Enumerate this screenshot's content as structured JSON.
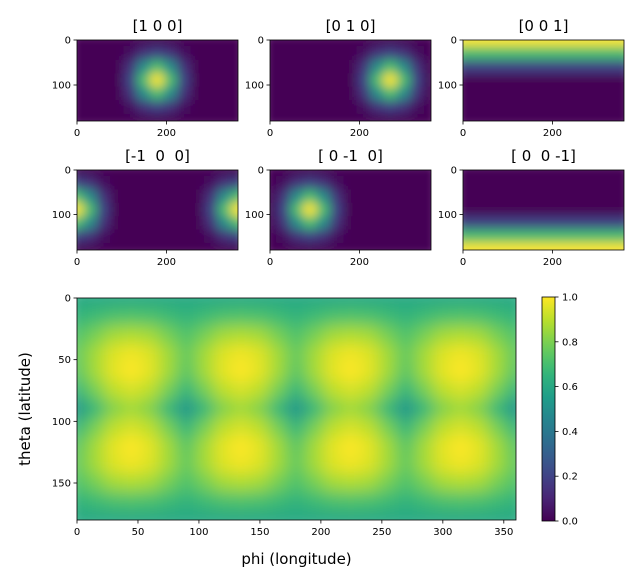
{
  "chart_data": [
    {
      "type": "heatmap",
      "title": "[1 0 0]",
      "colormap": "viridis",
      "x": [
        0,
        30,
        60,
        90,
        120,
        150,
        180,
        210,
        240,
        270,
        300,
        330,
        360
      ],
      "y": [
        0,
        30,
        60,
        90,
        120,
        150,
        180
      ],
      "values": [
        [
          0,
          0,
          0,
          0,
          0,
          0,
          0,
          0,
          0,
          0,
          0,
          0,
          0
        ],
        [
          0,
          0,
          0,
          0,
          0.04,
          0.14,
          0.2,
          0.14,
          0.04,
          0,
          0,
          0,
          0
        ],
        [
          0,
          0,
          0,
          0,
          0.14,
          0.49,
          0.7,
          0.49,
          0.14,
          0,
          0,
          0,
          0
        ],
        [
          0,
          0,
          0,
          0,
          0.2,
          0.7,
          1,
          0.7,
          0.2,
          0,
          0,
          0,
          0
        ],
        [
          0,
          0,
          0,
          0,
          0.14,
          0.49,
          0.7,
          0.49,
          0.14,
          0,
          0,
          0,
          0
        ],
        [
          0,
          0,
          0,
          0,
          0.04,
          0.14,
          0.2,
          0.14,
          0.04,
          0,
          0,
          0,
          0
        ],
        [
          0,
          0,
          0,
          0,
          0,
          0,
          0,
          0,
          0,
          0,
          0,
          0,
          0
        ]
      ],
      "xlim": [
        0,
        360
      ],
      "ylim": [
        180,
        0
      ],
      "xticks": [
        0,
        200
      ],
      "yticks": [
        0,
        100
      ]
    },
    {
      "type": "heatmap",
      "title": "[0 1 0]",
      "colormap": "viridis",
      "x": [
        0,
        30,
        60,
        90,
        120,
        150,
        180,
        210,
        240,
        270,
        300,
        330,
        360
      ],
      "y": [
        0,
        30,
        60,
        90,
        120,
        150,
        180
      ],
      "values": [
        [
          0,
          0,
          0,
          0,
          0,
          0,
          0,
          0,
          0,
          0,
          0,
          0,
          0
        ],
        [
          0,
          0,
          0,
          0,
          0,
          0,
          0,
          0.04,
          0.14,
          0.2,
          0.14,
          0.04,
          0
        ],
        [
          0,
          0,
          0,
          0,
          0,
          0,
          0,
          0.14,
          0.49,
          0.7,
          0.49,
          0.14,
          0
        ],
        [
          0,
          0,
          0,
          0,
          0,
          0,
          0,
          0.2,
          0.7,
          1,
          0.7,
          0.2,
          0
        ],
        [
          0,
          0,
          0,
          0,
          0,
          0,
          0,
          0.14,
          0.49,
          0.7,
          0.49,
          0.14,
          0
        ],
        [
          0,
          0,
          0,
          0,
          0,
          0,
          0,
          0.04,
          0.14,
          0.2,
          0.14,
          0.04,
          0
        ],
        [
          0,
          0,
          0,
          0,
          0,
          0,
          0,
          0,
          0,
          0,
          0,
          0,
          0
        ]
      ],
      "xlim": [
        0,
        360
      ],
      "ylim": [
        180,
        0
      ],
      "xticks": [
        0,
        200
      ],
      "yticks": [
        0,
        100
      ]
    },
    {
      "type": "heatmap",
      "title": "[0 0 1]",
      "colormap": "viridis",
      "x": [
        0,
        30,
        60,
        90,
        120,
        150,
        180,
        210,
        240,
        270,
        300,
        330,
        360
      ],
      "y": [
        0,
        30,
        60,
        90,
        120,
        150,
        180
      ],
      "values": [
        [
          1,
          1,
          1,
          1,
          1,
          1,
          1,
          1,
          1,
          1,
          1,
          1,
          1
        ],
        [
          0.7,
          0.7,
          0.7,
          0.7,
          0.7,
          0.7,
          0.7,
          0.7,
          0.7,
          0.7,
          0.7,
          0.7,
          0.7
        ],
        [
          0.2,
          0.2,
          0.2,
          0.2,
          0.2,
          0.2,
          0.2,
          0.2,
          0.2,
          0.2,
          0.2,
          0.2,
          0.2
        ],
        [
          0,
          0,
          0,
          0,
          0,
          0,
          0,
          0,
          0,
          0,
          0,
          0,
          0
        ],
        [
          0,
          0,
          0,
          0,
          0,
          0,
          0,
          0,
          0,
          0,
          0,
          0,
          0
        ],
        [
          0,
          0,
          0,
          0,
          0,
          0,
          0,
          0,
          0,
          0,
          0,
          0,
          0
        ],
        [
          0,
          0,
          0,
          0,
          0,
          0,
          0,
          0,
          0,
          0,
          0,
          0,
          0
        ]
      ],
      "xlim": [
        0,
        360
      ],
      "ylim": [
        180,
        0
      ],
      "xticks": [
        0,
        200
      ],
      "yticks": [
        0,
        100
      ]
    },
    {
      "type": "heatmap",
      "title": "[-1  0  0]",
      "colormap": "viridis",
      "x": [
        0,
        30,
        60,
        90,
        120,
        150,
        180,
        210,
        240,
        270,
        300,
        330,
        360
      ],
      "y": [
        0,
        30,
        60,
        90,
        120,
        150,
        180
      ],
      "values": [
        [
          0,
          0,
          0,
          0,
          0,
          0,
          0,
          0,
          0,
          0,
          0,
          0,
          0
        ],
        [
          0.2,
          0.14,
          0.04,
          0,
          0,
          0,
          0,
          0,
          0,
          0,
          0.04,
          0.14,
          0.2
        ],
        [
          0.7,
          0.49,
          0.14,
          0,
          0,
          0,
          0,
          0,
          0,
          0,
          0.14,
          0.49,
          0.7
        ],
        [
          1,
          0.7,
          0.2,
          0,
          0,
          0,
          0,
          0,
          0,
          0,
          0.2,
          0.7,
          1
        ],
        [
          0.7,
          0.49,
          0.14,
          0,
          0,
          0,
          0,
          0,
          0,
          0,
          0.14,
          0.49,
          0.7
        ],
        [
          0.2,
          0.14,
          0.04,
          0,
          0,
          0,
          0,
          0,
          0,
          0,
          0.04,
          0.14,
          0.2
        ],
        [
          0,
          0,
          0,
          0,
          0,
          0,
          0,
          0,
          0,
          0,
          0,
          0,
          0
        ]
      ],
      "xlim": [
        0,
        360
      ],
      "ylim": [
        180,
        0
      ],
      "xticks": [
        0,
        200
      ],
      "yticks": [
        0,
        100
      ]
    },
    {
      "type": "heatmap",
      "title": "[ 0 -1  0]",
      "colormap": "viridis",
      "x": [
        0,
        30,
        60,
        90,
        120,
        150,
        180,
        210,
        240,
        270,
        300,
        330,
        360
      ],
      "y": [
        0,
        30,
        60,
        90,
        120,
        150,
        180
      ],
      "values": [
        [
          0,
          0,
          0,
          0,
          0,
          0,
          0,
          0,
          0,
          0,
          0,
          0,
          0
        ],
        [
          0,
          0.04,
          0.14,
          0.2,
          0.14,
          0.04,
          0,
          0,
          0,
          0,
          0,
          0,
          0
        ],
        [
          0,
          0.14,
          0.49,
          0.7,
          0.49,
          0.14,
          0,
          0,
          0,
          0,
          0,
          0,
          0
        ],
        [
          0,
          0.2,
          0.7,
          1,
          0.7,
          0.2,
          0,
          0,
          0,
          0,
          0,
          0,
          0
        ],
        [
          0,
          0.14,
          0.49,
          0.7,
          0.49,
          0.14,
          0,
          0,
          0,
          0,
          0,
          0,
          0
        ],
        [
          0,
          0.04,
          0.14,
          0.2,
          0.14,
          0.04,
          0,
          0,
          0,
          0,
          0,
          0,
          0
        ],
        [
          0,
          0,
          0,
          0,
          0,
          0,
          0,
          0,
          0,
          0,
          0,
          0,
          0
        ]
      ],
      "xlim": [
        0,
        360
      ],
      "ylim": [
        180,
        0
      ],
      "xticks": [
        0,
        200
      ],
      "yticks": [
        0,
        100
      ]
    },
    {
      "type": "heatmap",
      "title": "[ 0  0 -1]",
      "colormap": "viridis",
      "x": [
        0,
        30,
        60,
        90,
        120,
        150,
        180,
        210,
        240,
        270,
        300,
        330,
        360
      ],
      "y": [
        0,
        30,
        60,
        90,
        120,
        150,
        180
      ],
      "values": [
        [
          0,
          0,
          0,
          0,
          0,
          0,
          0,
          0,
          0,
          0,
          0,
          0,
          0
        ],
        [
          0,
          0,
          0,
          0,
          0,
          0,
          0,
          0,
          0,
          0,
          0,
          0,
          0
        ],
        [
          0,
          0,
          0,
          0,
          0,
          0,
          0,
          0,
          0,
          0,
          0,
          0,
          0
        ],
        [
          0,
          0,
          0,
          0,
          0,
          0,
          0,
          0,
          0,
          0,
          0,
          0,
          0
        ],
        [
          0.2,
          0.2,
          0.2,
          0.2,
          0.2,
          0.2,
          0.2,
          0.2,
          0.2,
          0.2,
          0.2,
          0.2,
          0.2
        ],
        [
          0.7,
          0.7,
          0.7,
          0.7,
          0.7,
          0.7,
          0.7,
          0.7,
          0.7,
          0.7,
          0.7,
          0.7,
          0.7
        ],
        [
          1,
          1,
          1,
          1,
          1,
          1,
          1,
          1,
          1,
          1,
          1,
          1,
          1
        ]
      ],
      "xlim": [
        0,
        360
      ],
      "ylim": [
        180,
        0
      ],
      "xticks": [
        0,
        200
      ],
      "yticks": [
        0,
        100
      ]
    },
    {
      "type": "heatmap",
      "colormap": "viridis",
      "x_label": "phi (longitude)",
      "y_label": "theta (latitude)",
      "x": [
        0,
        15,
        30,
        45,
        60,
        75,
        90,
        105,
        120,
        135,
        150,
        165,
        180,
        195,
        210,
        225,
        240,
        255,
        270,
        285,
        300,
        315,
        330,
        345,
        360
      ],
      "y": [
        0,
        15,
        30,
        45,
        60,
        75,
        90,
        105,
        120,
        135,
        150,
        165,
        180
      ],
      "values": [
        [
          0.6,
          0.6,
          0.6,
          0.6,
          0.6,
          0.6,
          0.6,
          0.6,
          0.6,
          0.6,
          0.6,
          0.6,
          0.6,
          0.6,
          0.6,
          0.6,
          0.6,
          0.6,
          0.6,
          0.6,
          0.6,
          0.6,
          0.6,
          0.6,
          0.6
        ],
        [
          0.65,
          0.68,
          0.71,
          0.72,
          0.71,
          0.68,
          0.65,
          0.68,
          0.71,
          0.72,
          0.71,
          0.68,
          0.65,
          0.68,
          0.71,
          0.72,
          0.71,
          0.68,
          0.65,
          0.68,
          0.71,
          0.72,
          0.71,
          0.68,
          0.65
        ],
        [
          0.72,
          0.79,
          0.86,
          0.88,
          0.86,
          0.79,
          0.72,
          0.79,
          0.86,
          0.88,
          0.86,
          0.79,
          0.72,
          0.79,
          0.86,
          0.88,
          0.86,
          0.79,
          0.72,
          0.79,
          0.86,
          0.88,
          0.86,
          0.79,
          0.72
        ],
        [
          0.76,
          0.86,
          0.95,
          0.98,
          0.95,
          0.86,
          0.76,
          0.86,
          0.95,
          0.98,
          0.95,
          0.86,
          0.76,
          0.86,
          0.95,
          0.98,
          0.95,
          0.86,
          0.76,
          0.86,
          0.95,
          0.98,
          0.95,
          0.86,
          0.76
        ],
        [
          0.74,
          0.86,
          0.96,
          1.0,
          0.96,
          0.86,
          0.74,
          0.86,
          0.96,
          1.0,
          0.96,
          0.86,
          0.74,
          0.86,
          0.96,
          1.0,
          0.96,
          0.86,
          0.74,
          0.86,
          0.96,
          1.0,
          0.96,
          0.86,
          0.74
        ],
        [
          0.66,
          0.79,
          0.9,
          0.94,
          0.9,
          0.79,
          0.66,
          0.79,
          0.9,
          0.94,
          0.9,
          0.79,
          0.66,
          0.79,
          0.9,
          0.94,
          0.9,
          0.79,
          0.66,
          0.79,
          0.9,
          0.94,
          0.9,
          0.79,
          0.66
        ],
        [
          0.52,
          0.67,
          0.81,
          0.86,
          0.81,
          0.67,
          0.52,
          0.67,
          0.81,
          0.86,
          0.81,
          0.67,
          0.52,
          0.67,
          0.81,
          0.86,
          0.81,
          0.67,
          0.52,
          0.67,
          0.81,
          0.86,
          0.81,
          0.67,
          0.52
        ],
        [
          0.66,
          0.79,
          0.9,
          0.94,
          0.9,
          0.79,
          0.66,
          0.79,
          0.9,
          0.94,
          0.9,
          0.79,
          0.66,
          0.79,
          0.9,
          0.94,
          0.9,
          0.79,
          0.66,
          0.79,
          0.9,
          0.94,
          0.9,
          0.79,
          0.66
        ],
        [
          0.74,
          0.86,
          0.96,
          1.0,
          0.96,
          0.86,
          0.74,
          0.86,
          0.96,
          1.0,
          0.96,
          0.86,
          0.74,
          0.86,
          0.96,
          1.0,
          0.96,
          0.86,
          0.74,
          0.86,
          0.96,
          1.0,
          0.96,
          0.86,
          0.74
        ],
        [
          0.76,
          0.86,
          0.95,
          0.98,
          0.95,
          0.86,
          0.76,
          0.86,
          0.95,
          0.98,
          0.95,
          0.86,
          0.76,
          0.86,
          0.95,
          0.98,
          0.95,
          0.86,
          0.76,
          0.86,
          0.95,
          0.98,
          0.95,
          0.86,
          0.76
        ],
        [
          0.72,
          0.79,
          0.86,
          0.88,
          0.86,
          0.79,
          0.72,
          0.79,
          0.86,
          0.88,
          0.86,
          0.79,
          0.72,
          0.79,
          0.86,
          0.88,
          0.86,
          0.79,
          0.72,
          0.79,
          0.86,
          0.88,
          0.86,
          0.79,
          0.72
        ],
        [
          0.65,
          0.68,
          0.71,
          0.72,
          0.71,
          0.68,
          0.65,
          0.68,
          0.71,
          0.72,
          0.71,
          0.68,
          0.65,
          0.68,
          0.71,
          0.72,
          0.71,
          0.68,
          0.65,
          0.68,
          0.71,
          0.72,
          0.71,
          0.68,
          0.65
        ],
        [
          0.6,
          0.6,
          0.6,
          0.6,
          0.6,
          0.6,
          0.6,
          0.6,
          0.6,
          0.6,
          0.6,
          0.6,
          0.6,
          0.6,
          0.6,
          0.6,
          0.6,
          0.6,
          0.6,
          0.6,
          0.6,
          0.6,
          0.6,
          0.6,
          0.6
        ]
      ],
      "xlim": [
        0,
        360
      ],
      "ylim": [
        180,
        0
      ],
      "xticks": [
        0,
        50,
        100,
        150,
        200,
        250,
        300,
        350
      ],
      "yticks": [
        0,
        50,
        100,
        150
      ],
      "colorbar": {
        "lim": [
          0,
          1
        ],
        "ticks": [
          {
            "value": 0,
            "label": "0.0"
          },
          {
            "value": 0.2,
            "label": "0.2"
          },
          {
            "value": 0.4,
            "label": "0.4"
          },
          {
            "value": 0.6,
            "label": "0.6"
          },
          {
            "value": 0.8,
            "label": "0.8"
          },
          {
            "value": 1,
            "label": "1.0"
          }
        ]
      }
    }
  ]
}
